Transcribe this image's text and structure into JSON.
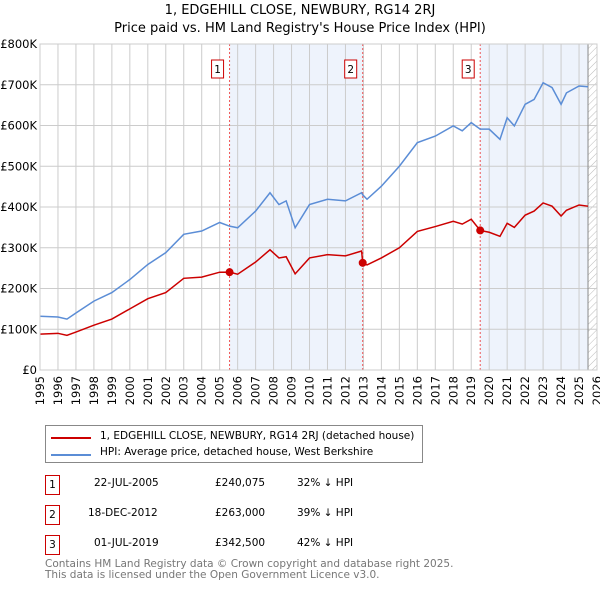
{
  "title_line1": "1, EDGEHILL CLOSE, NEWBURY, RG14 2RJ",
  "title_line2": "Price paid vs. HM Land Registry's House Price Index (HPI)",
  "chart_data": {
    "type": "line",
    "title": "1, EDGEHILL CLOSE, NEWBURY, RG14 2RJ — Price paid vs. HM Land Registry's House Price Index (HPI)",
    "xlim": [
      1995,
      2026
    ],
    "ylim": [
      0,
      800000
    ],
    "x_ticks": [
      "1995",
      "1996",
      "1997",
      "1998",
      "1999",
      "2000",
      "2001",
      "2002",
      "2003",
      "2004",
      "2005",
      "2006",
      "2007",
      "2008",
      "2009",
      "2010",
      "2011",
      "2012",
      "2013",
      "2014",
      "2015",
      "2016",
      "2017",
      "2018",
      "2019",
      "2020",
      "2021",
      "2022",
      "2023",
      "2024",
      "2025",
      "2026"
    ],
    "y_ticks": [
      {
        "v": 0,
        "l": "£0"
      },
      {
        "v": 100000,
        "l": "£100K"
      },
      {
        "v": 200000,
        "l": "£200K"
      },
      {
        "v": 300000,
        "l": "£300K"
      },
      {
        "v": 400000,
        "l": "£400K"
      },
      {
        "v": 500000,
        "l": "£500K"
      },
      {
        "v": 600000,
        "l": "£600K"
      },
      {
        "v": 700000,
        "l": "£700K"
      },
      {
        "v": 800000,
        "l": "£800K"
      }
    ],
    "grid": true,
    "series": [
      {
        "name": "1, EDGEHILL CLOSE, NEWBURY, RG14 2RJ (detached house)",
        "color": "#cc0000",
        "x": [
          1995,
          1996,
          1996.5,
          1997,
          1998,
          1999,
          2000,
          2001,
          2002,
          2003,
          2004,
          2005,
          2005.55,
          2006,
          2007,
          2007.8,
          2008.3,
          2008.7,
          2009.2,
          2010,
          2011,
          2012,
          2012.9,
          2012.96,
          2013.2,
          2014,
          2015,
          2016,
          2017,
          2018,
          2018.5,
          2019,
          2019.5,
          2020,
          2020.6,
          2021,
          2021.4,
          2022,
          2022.5,
          2023,
          2023.5,
          2024,
          2024.3,
          2025,
          2025.5
        ],
        "y": [
          88000,
          90000,
          85000,
          93000,
          110000,
          125000,
          150000,
          175000,
          190000,
          225000,
          228000,
          240000,
          240075,
          235000,
          265000,
          295000,
          275000,
          278000,
          236000,
          275000,
          283000,
          280000,
          292000,
          263000,
          258000,
          275000,
          300000,
          340000,
          352000,
          365000,
          358000,
          370000,
          342500,
          338000,
          328000,
          360000,
          350000,
          380000,
          390000,
          410000,
          402000,
          378000,
          392000,
          405000,
          402000
        ]
      },
      {
        "name": "HPI: Average price, detached house, West Berkshire",
        "color": "#5b8dd6",
        "x": [
          1995,
          1996,
          1996.5,
          1997,
          1998,
          1999,
          2000,
          2001,
          2002,
          2003,
          2004,
          2005,
          2005.55,
          2006,
          2007,
          2007.8,
          2008.3,
          2008.7,
          2009.2,
          2010,
          2011,
          2012,
          2012.9,
          2012.96,
          2013.2,
          2014,
          2015,
          2016,
          2017,
          2018,
          2018.5,
          2019,
          2019.5,
          2020,
          2020.6,
          2021,
          2021.4,
          2022,
          2022.5,
          2023,
          2023.5,
          2024,
          2024.3,
          2025,
          2025.5
        ],
        "y": [
          132000,
          130000,
          125000,
          140000,
          169000,
          190000,
          222000,
          259000,
          288000,
          333000,
          341000,
          362000,
          353000,
          349000,
          390000,
          435000,
          406000,
          415000,
          349000,
          406000,
          419000,
          415000,
          435000,
          430000,
          419000,
          451000,
          500000,
          558000,
          574000,
          599000,
          587000,
          607000,
          591000,
          591000,
          566000,
          619000,
          599000,
          652000,
          664000,
          705000,
          693000,
          652000,
          680000,
          697000,
          695000
        ]
      }
    ],
    "sales": [
      {
        "label": "1",
        "x": 2005.55,
        "y": 240075
      },
      {
        "label": "2",
        "x": 2012.96,
        "y": 263000
      },
      {
        "label": "3",
        "x": 2019.5,
        "y": 342500
      }
    ],
    "legend": "bottom"
  },
  "legend": {
    "items": [
      "1, EDGEHILL CLOSE, NEWBURY, RG14 2RJ (detached house)",
      "HPI: Average price, detached house, West Berkshire"
    ]
  },
  "transactions": [
    {
      "num": "1",
      "date": "22-JUL-2005",
      "price": "£240,075",
      "hpi": "32% ↓ HPI"
    },
    {
      "num": "2",
      "date": "18-DEC-2012",
      "price": "£263,000",
      "hpi": "39% ↓ HPI"
    },
    {
      "num": "3",
      "date": "01-JUL-2019",
      "price": "£342,500",
      "hpi": "42% ↓ HPI"
    }
  ],
  "footer": {
    "line1": "Contains HM Land Registry data © Crown copyright and database right 2025.",
    "line2": "This data is licensed under the Open Government Licence v3.0."
  }
}
